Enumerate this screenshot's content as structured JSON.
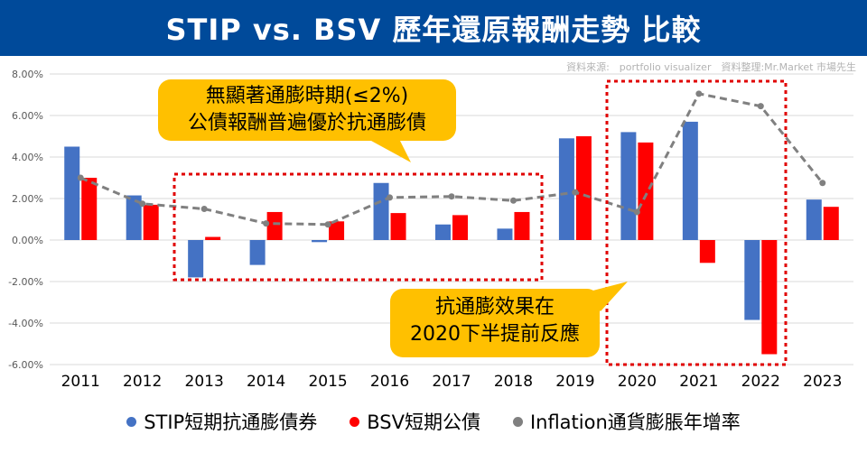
{
  "header": {
    "title": "STIP vs. BSV 歷年還原報酬走勢 比較"
  },
  "source_note": "資料來源:　portfolio visualizer　資料整理:Mr.Market 市場先生",
  "callouts": {
    "low_inflation": {
      "line1": "無顯著通膨時期(≤2%)",
      "line2": "公債報酬普遍優於抗通膨債"
    },
    "inflation_effect": {
      "line1": "抗通膨效果在",
      "line2": "2020下半提前反應"
    }
  },
  "legend": {
    "stip": "STIP短期抗通膨債券",
    "bsv": "BSV短期公債",
    "inflation": "Inflation通貨膨脹年增率"
  },
  "colors": {
    "stip": "#4472c4",
    "bsv": "#ff0000",
    "inflation": "#808080",
    "highlight_box": "#e00000",
    "callout": "#ffc000",
    "title_bar": "#004a9a"
  },
  "chart_data": {
    "type": "bar",
    "categories": [
      "2011",
      "2012",
      "2013",
      "2014",
      "2015",
      "2016",
      "2017",
      "2018",
      "2019",
      "2020",
      "2021",
      "2022",
      "2023"
    ],
    "series": [
      {
        "name": "STIP短期抗通膨債券",
        "type": "bar",
        "values": [
          4.5,
          2.15,
          -1.8,
          -1.2,
          -0.1,
          2.75,
          0.75,
          0.55,
          4.9,
          5.2,
          5.7,
          -3.85,
          1.95
        ]
      },
      {
        "name": "BSV短期公債",
        "type": "bar",
        "values": [
          3.0,
          1.7,
          0.15,
          1.35,
          0.9,
          1.3,
          1.2,
          1.35,
          5.0,
          4.7,
          -1.1,
          -5.5,
          1.6
        ]
      },
      {
        "name": "Inflation通貨膨脹年增率",
        "type": "line",
        "values": [
          3.0,
          1.75,
          1.5,
          0.8,
          0.75,
          2.05,
          2.1,
          1.9,
          2.3,
          1.35,
          7.05,
          6.45,
          2.75
        ]
      }
    ],
    "y_ticks": [
      "8.00%",
      "6.00%",
      "4.00%",
      "2.00%",
      "0.00%",
      "-2.00%",
      "-4.00%",
      "-6.00%"
    ],
    "ylim": [
      -6,
      8
    ],
    "grid": true,
    "legend_position": "bottom"
  }
}
